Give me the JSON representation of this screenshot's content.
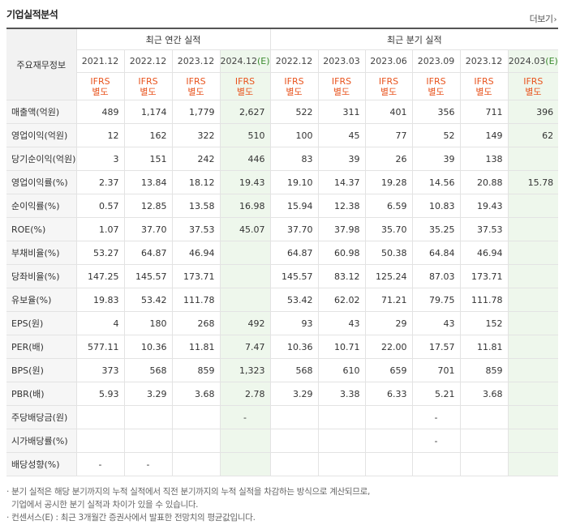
{
  "section_title": "기업실적분석",
  "more_label": "더보기",
  "table": {
    "row_header_label": "주요재무정보",
    "groups": [
      {
        "label": "최근 연간 실적",
        "span": 4
      },
      {
        "label": "최근 분기 실적",
        "span": 6
      }
    ],
    "periods": [
      {
        "label": "2021.12",
        "est": false
      },
      {
        "label": "2022.12",
        "est": false
      },
      {
        "label": "2023.12",
        "est": false
      },
      {
        "label": "2024.12",
        "suffix": "(E)",
        "est": true
      },
      {
        "label": "2022.12",
        "est": false
      },
      {
        "label": "2023.03",
        "est": false
      },
      {
        "label": "2023.06",
        "est": false
      },
      {
        "label": "2023.09",
        "est": false
      },
      {
        "label": "2023.12",
        "est": false
      },
      {
        "label": "2024.03",
        "suffix": "(E)",
        "est": true
      }
    ],
    "standard_line1": "IFRS",
    "standard_line2": "별도",
    "rows": [
      {
        "label": "매출액(억원)",
        "values": [
          "489",
          "1,174",
          "1,779",
          "2,627",
          "522",
          "311",
          "401",
          "356",
          "711",
          "396"
        ]
      },
      {
        "label": "영업이익(억원)",
        "values": [
          "12",
          "162",
          "322",
          "510",
          "100",
          "45",
          "77",
          "52",
          "149",
          "62"
        ]
      },
      {
        "label": "당기순이익(억원)",
        "values": [
          "3",
          "151",
          "242",
          "446",
          "83",
          "39",
          "26",
          "39",
          "138",
          ""
        ]
      },
      {
        "label": "영업이익률(%)",
        "sep": true,
        "values": [
          "2.37",
          "13.84",
          "18.12",
          "19.43",
          "19.10",
          "14.37",
          "19.28",
          "14.56",
          "20.88",
          "15.78"
        ]
      },
      {
        "label": "순이익률(%)",
        "values": [
          "0.57",
          "12.85",
          "13.58",
          "16.98",
          "15.94",
          "12.38",
          "6.59",
          "10.83",
          "19.43",
          ""
        ]
      },
      {
        "label": "ROE(%)",
        "values": [
          "1.07",
          "37.70",
          "37.53",
          "45.07",
          "37.70",
          "37.98",
          "35.70",
          "35.25",
          "37.53",
          ""
        ]
      },
      {
        "label": "부채비율(%)",
        "sep": true,
        "values": [
          "53.27",
          "64.87",
          "46.94",
          "",
          "64.87",
          "60.98",
          "50.38",
          "64.84",
          "46.94",
          ""
        ]
      },
      {
        "label": "당좌비율(%)",
        "values": [
          "147.25",
          "145.57",
          "173.71",
          "",
          "145.57",
          "83.12",
          "125.24",
          "87.03",
          "173.71",
          ""
        ]
      },
      {
        "label": "유보율(%)",
        "values": [
          "19.83",
          "53.42",
          "111.78",
          "",
          "53.42",
          "62.02",
          "71.21",
          "79.75",
          "111.78",
          ""
        ]
      },
      {
        "label": "EPS(원)",
        "sep": true,
        "values": [
          "4",
          "180",
          "268",
          "492",
          "93",
          "43",
          "29",
          "43",
          "152",
          ""
        ]
      },
      {
        "label": "PER(배)",
        "values": [
          "577.11",
          "10.36",
          "11.81",
          "7.47",
          "10.36",
          "10.71",
          "22.00",
          "17.57",
          "11.81",
          ""
        ]
      },
      {
        "label": "BPS(원)",
        "values": [
          "373",
          "568",
          "859",
          "1,323",
          "568",
          "610",
          "659",
          "701",
          "859",
          ""
        ]
      },
      {
        "label": "PBR(배)",
        "values": [
          "5.93",
          "3.29",
          "3.68",
          "2.78",
          "3.29",
          "3.38",
          "6.33",
          "5.21",
          "3.68",
          ""
        ]
      },
      {
        "label": "주당배당금(원)",
        "sep": true,
        "values": [
          "",
          "",
          "",
          "-",
          "",
          "",
          "",
          "-",
          "",
          ""
        ]
      },
      {
        "label": "시가배당률(%)",
        "values": [
          "",
          "",
          "",
          "",
          "",
          "",
          "",
          "-",
          "",
          ""
        ]
      },
      {
        "label": "배당성향(%)",
        "values": [
          "-",
          "-",
          "",
          "",
          "",
          "",
          "",
          "",
          "",
          ""
        ]
      }
    ]
  },
  "notes": [
    "분기 실적은 해당 분기까지의 누적 실적에서 직전 분기까지의 누적 실적을 차감하는 방식으로 계산되므로,",
    "기업에서 공시한 분기 실적과 차이가 있을 수 있습니다.",
    "컨센서스(E) : 최근 3개월간 증권사에서 발표한 전망치의 평균값입니다."
  ]
}
